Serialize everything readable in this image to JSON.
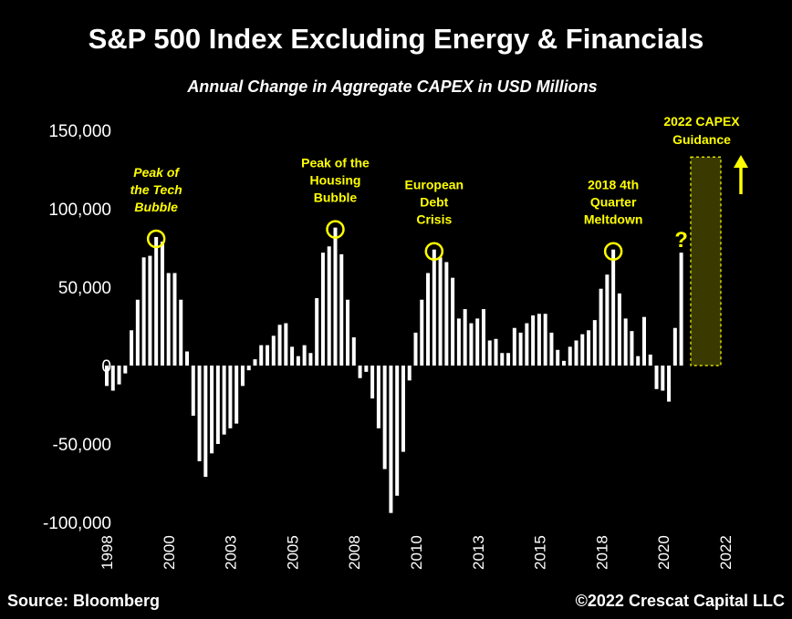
{
  "chart_data": {
    "type": "bar",
    "title": "S&P 500 Index Excluding Energy & Financials",
    "subtitle": "Annual Change in Aggregate CAPEX in USD Millions",
    "x_frequency": "quarterly",
    "x_start": "1998 Q1",
    "x_tick_labels": [
      "1998",
      "2000",
      "2003",
      "2005",
      "2008",
      "2010",
      "2013",
      "2015",
      "2018",
      "2020",
      "2022"
    ],
    "y_tick_labels": [
      "150,000",
      "100,000",
      "50,000",
      "0",
      "-50,000",
      "-100,000"
    ],
    "y_ticks": [
      150000,
      100000,
      50000,
      0,
      -50000,
      -100000
    ],
    "ylim": [
      -100000,
      150000
    ],
    "grid": false,
    "values": [
      -13000,
      -16000,
      -12000,
      -5000,
      22500,
      42000,
      69000,
      70000,
      82000,
      79000,
      59000,
      59000,
      42000,
      9000,
      -32000,
      -61000,
      -71000,
      -56000,
      -50000,
      -44000,
      -40000,
      -37000,
      -13000,
      -3000,
      4000,
      13000,
      13000,
      19000,
      26000,
      27000,
      12000,
      6000,
      13000,
      8000,
      43000,
      72000,
      76000,
      88000,
      71000,
      42000,
      18000,
      -8000,
      -4000,
      -21000,
      -40000,
      -66000,
      -94000,
      -83000,
      -55000,
      -9500,
      21000,
      42000,
      59000,
      74000,
      69000,
      66000,
      56000,
      30000,
      36000,
      27000,
      30000,
      36000,
      16000,
      17000,
      8000,
      8000,
      24000,
      21000,
      27000,
      32000,
      33000,
      33000,
      21000,
      10000,
      3000,
      12000,
      16000,
      20000,
      22500,
      29000,
      49000,
      58000,
      74000,
      46000,
      30000,
      22000,
      6000,
      31000,
      7000,
      -15000,
      -16000,
      -23000,
      24000,
      72000
    ],
    "bar_color": "#ffffff",
    "annotations": [
      {
        "lines": [
          "Peak of",
          "the Tech",
          "Bubble"
        ],
        "bar_index": 8,
        "italic": true
      },
      {
        "lines": [
          "Peak of the",
          "Housing",
          "Bubble"
        ],
        "bar_index": 37,
        "italic": false
      },
      {
        "lines": [
          "European",
          "Debt",
          "Crisis"
        ],
        "bar_index": 53,
        "italic": false
      },
      {
        "lines": [
          "2018 4th",
          "Quarter",
          "Meltdown"
        ],
        "bar_index": 82,
        "italic": false
      }
    ],
    "question_mark": "?",
    "guidance": {
      "lines": [
        "2022 CAPEX",
        "Guidance"
      ],
      "value": 133000,
      "arrow": "up-arrow"
    },
    "annotation_color": "#ffff00",
    "guidance_fill": "#3a3a00"
  },
  "footer": {
    "source": "Source: Bloomberg",
    "copyright": "©2022 Crescat Capital LLC"
  }
}
